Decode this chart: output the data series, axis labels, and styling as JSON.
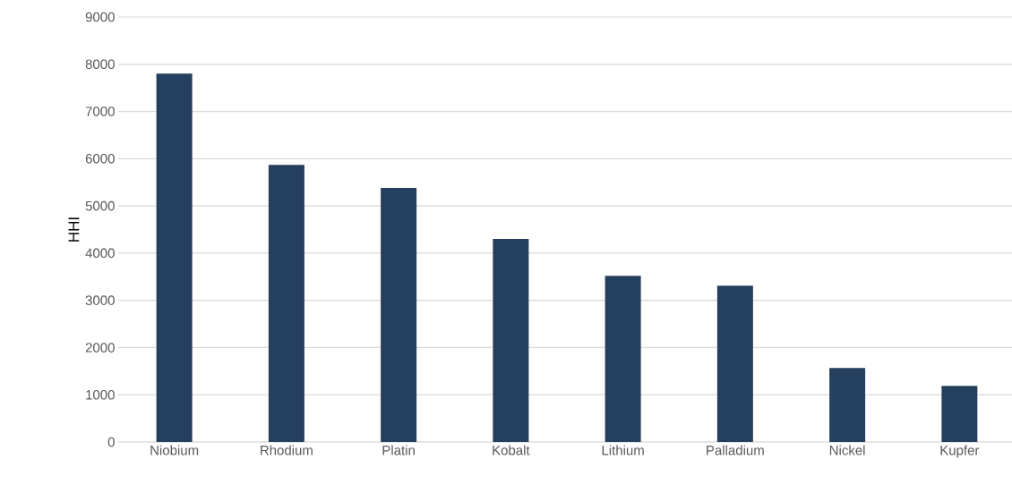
{
  "chart_data": {
    "type": "bar",
    "ylabel": "HHI",
    "categories": [
      "Niobium",
      "Rhodium",
      "Platin",
      "Kobalt",
      "Lithium",
      "Palladium",
      "Nickel",
      "Kupfer"
    ],
    "values": [
      7800,
      5870,
      5380,
      4300,
      3520,
      3310,
      1570,
      1190
    ],
    "color": "#253f5f",
    "ylim": [
      0,
      9000
    ],
    "yticks": [
      0,
      1000,
      2000,
      3000,
      4000,
      5000,
      6000,
      7000,
      8000,
      9000
    ],
    "grid": "y"
  }
}
